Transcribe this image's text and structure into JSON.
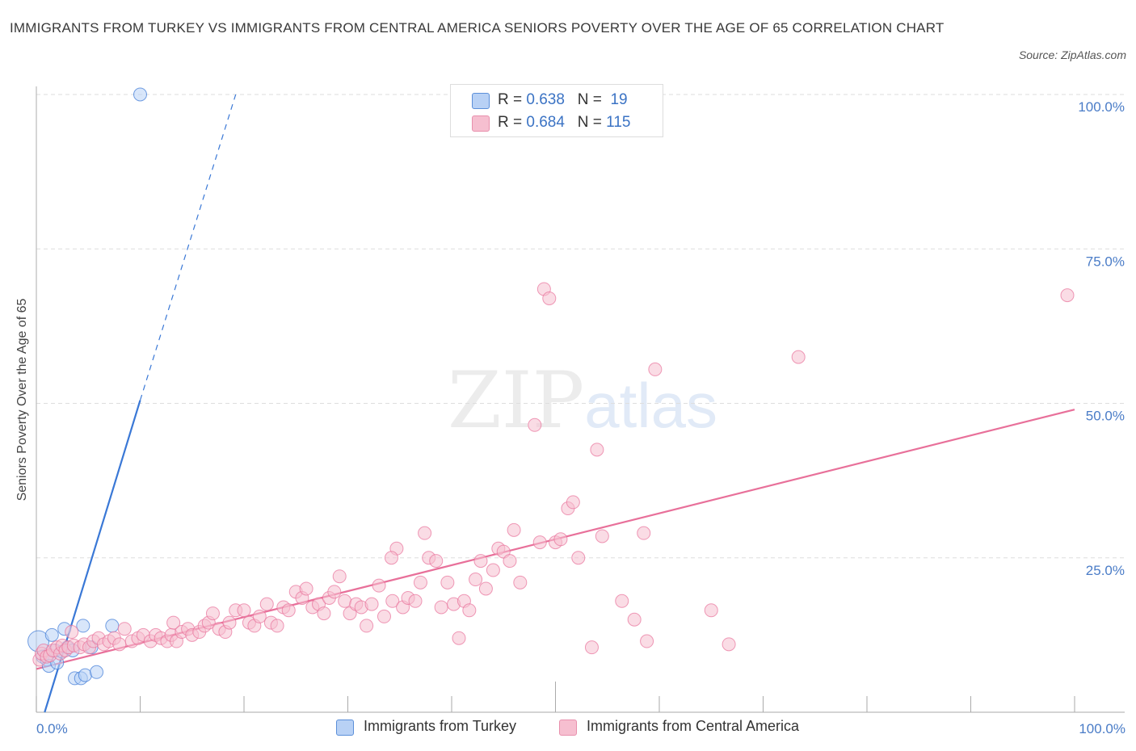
{
  "title": "IMMIGRANTS FROM TURKEY VS IMMIGRANTS FROM CENTRAL AMERICA SENIORS POVERTY OVER THE AGE OF 65 CORRELATION CHART",
  "source": "Source: ZipAtlas.com",
  "watermark": {
    "zip": "ZIP",
    "atlas": "atlas"
  },
  "colors": {
    "turkey": "#3a78d6",
    "turkey_fill": "#b8d1f5",
    "central_america": "#e8709a",
    "central_america_fill": "#f6bfd0",
    "tick": "#4a7cc7"
  },
  "legend": {
    "r_label": "R =",
    "n_label": "N =",
    "rows": [
      {
        "name": "Immigrants from Turkey",
        "r": "0.638",
        "n": "19"
      },
      {
        "name": "Immigrants from Central America",
        "r": "0.684",
        "n": "115"
      }
    ]
  },
  "chart_data": {
    "type": "scatter",
    "title": "IMMIGRANTS FROM TURKEY VS IMMIGRANTS FROM CENTRAL AMERICA SENIORS POVERTY OVER THE AGE OF 65 CORRELATION CHART",
    "xlabel": "",
    "ylabel": "Seniors Poverty Over the Age of 65",
    "xlim": [
      0,
      100
    ],
    "ylim": [
      0,
      100
    ],
    "x_tick_labels": [
      "0.0%",
      "100.0%"
    ],
    "y_tick_values": [
      25,
      50,
      75,
      100
    ],
    "y_tick_labels": [
      "25.0%",
      "50.0%",
      "75.0%",
      "100.0%"
    ],
    "grid": true,
    "legend_position": "top-center",
    "series": [
      {
        "name": "Immigrants from Turkey",
        "points": [
          [
            0.2,
            11.5
          ],
          [
            0.6,
            9.0
          ],
          [
            1.0,
            8.5
          ],
          [
            1.2,
            7.5
          ],
          [
            1.5,
            12.5
          ],
          [
            1.8,
            10.0
          ],
          [
            2.0,
            8.0
          ],
          [
            2.5,
            9.8
          ],
          [
            2.7,
            13.5
          ],
          [
            3.0,
            10.5
          ],
          [
            3.5,
            10.0
          ],
          [
            3.7,
            5.5
          ],
          [
            4.3,
            5.5
          ],
          [
            4.5,
            14.0
          ],
          [
            4.7,
            6.0
          ],
          [
            5.3,
            10.5
          ],
          [
            5.8,
            6.5
          ],
          [
            7.3,
            14.0
          ],
          [
            10.0,
            100.0
          ]
        ],
        "trend": {
          "x0": 0.8,
          "y0": 0.0,
          "x1": 10.0,
          "y1": 50.5,
          "dash_x1": 19.2,
          "dash_y1": 100.0
        }
      },
      {
        "name": "Immigrants from Central America",
        "points": [
          [
            0.3,
            8.5
          ],
          [
            0.5,
            9.5
          ],
          [
            0.7,
            10.0
          ],
          [
            1.0,
            9.0
          ],
          [
            1.3,
            9.2
          ],
          [
            1.6,
            10.0
          ],
          [
            2.0,
            10.5
          ],
          [
            2.3,
            9.5
          ],
          [
            2.5,
            10.8
          ],
          [
            2.8,
            10.0
          ],
          [
            3.1,
            10.5
          ],
          [
            3.4,
            13.0
          ],
          [
            3.6,
            10.8
          ],
          [
            4.2,
            10.5
          ],
          [
            4.6,
            11.0
          ],
          [
            5.1,
            10.5
          ],
          [
            5.5,
            11.5
          ],
          [
            6.0,
            12.0
          ],
          [
            6.5,
            11.0
          ],
          [
            7.0,
            11.5
          ],
          [
            7.5,
            12.0
          ],
          [
            8.0,
            11.0
          ],
          [
            8.5,
            13.5
          ],
          [
            9.2,
            11.5
          ],
          [
            9.8,
            12.0
          ],
          [
            10.3,
            12.5
          ],
          [
            11.0,
            11.5
          ],
          [
            11.5,
            12.5
          ],
          [
            12.0,
            12.0
          ],
          [
            12.6,
            11.5
          ],
          [
            13.0,
            12.5
          ],
          [
            13.5,
            11.5
          ],
          [
            13.2,
            14.5
          ],
          [
            14.0,
            13.0
          ],
          [
            14.6,
            13.5
          ],
          [
            15.0,
            12.5
          ],
          [
            15.7,
            13.0
          ],
          [
            16.2,
            14.0
          ],
          [
            16.6,
            14.5
          ],
          [
            17.0,
            16.0
          ],
          [
            17.6,
            13.5
          ],
          [
            18.2,
            13.0
          ],
          [
            18.6,
            14.5
          ],
          [
            19.2,
            16.5
          ],
          [
            20.0,
            16.5
          ],
          [
            20.5,
            14.5
          ],
          [
            21.0,
            14.0
          ],
          [
            21.5,
            15.5
          ],
          [
            22.2,
            17.5
          ],
          [
            22.6,
            14.5
          ],
          [
            23.2,
            14.0
          ],
          [
            23.8,
            17.0
          ],
          [
            24.3,
            16.5
          ],
          [
            25.0,
            19.5
          ],
          [
            25.6,
            18.5
          ],
          [
            26.0,
            20.0
          ],
          [
            26.6,
            17.0
          ],
          [
            27.2,
            17.5
          ],
          [
            27.7,
            16.0
          ],
          [
            28.2,
            18.5
          ],
          [
            28.7,
            19.5
          ],
          [
            29.2,
            22.0
          ],
          [
            29.7,
            18.0
          ],
          [
            30.2,
            16.0
          ],
          [
            30.8,
            17.5
          ],
          [
            31.3,
            17.0
          ],
          [
            31.8,
            14.0
          ],
          [
            32.3,
            17.5
          ],
          [
            33.0,
            20.5
          ],
          [
            33.5,
            15.5
          ],
          [
            34.3,
            18.0
          ],
          [
            34.7,
            26.5
          ],
          [
            34.2,
            25.0
          ],
          [
            35.3,
            17.0
          ],
          [
            35.8,
            18.5
          ],
          [
            36.5,
            18.0
          ],
          [
            37.0,
            21.0
          ],
          [
            37.4,
            29.0
          ],
          [
            37.8,
            25.0
          ],
          [
            38.5,
            24.5
          ],
          [
            39.0,
            17.0
          ],
          [
            39.6,
            21.0
          ],
          [
            40.2,
            17.5
          ],
          [
            40.7,
            12.0
          ],
          [
            41.2,
            18.0
          ],
          [
            41.7,
            16.5
          ],
          [
            42.3,
            21.5
          ],
          [
            42.8,
            24.5
          ],
          [
            43.3,
            20.0
          ],
          [
            44.0,
            23.0
          ],
          [
            44.5,
            26.5
          ],
          [
            45.0,
            26.0
          ],
          [
            45.6,
            24.5
          ],
          [
            46.0,
            29.5
          ],
          [
            46.6,
            21.0
          ],
          [
            48.0,
            46.5
          ],
          [
            48.5,
            27.5
          ],
          [
            48.9,
            68.5
          ],
          [
            49.4,
            67.0
          ],
          [
            50.0,
            27.5
          ],
          [
            50.5,
            28.0
          ],
          [
            51.2,
            33.0
          ],
          [
            51.7,
            34.0
          ],
          [
            52.2,
            25.0
          ],
          [
            53.5,
            10.5
          ],
          [
            54.0,
            42.5
          ],
          [
            54.5,
            28.5
          ],
          [
            56.4,
            18.0
          ],
          [
            57.6,
            15.0
          ],
          [
            58.5,
            29.0
          ],
          [
            58.8,
            11.5
          ],
          [
            59.6,
            55.5
          ],
          [
            65.0,
            16.5
          ],
          [
            66.7,
            11.0
          ],
          [
            73.4,
            57.5
          ],
          [
            99.3,
            67.5
          ]
        ],
        "trend": {
          "x0": 0.0,
          "y0": 7.0,
          "x1": 100.0,
          "y1": 49.0
        }
      }
    ]
  }
}
